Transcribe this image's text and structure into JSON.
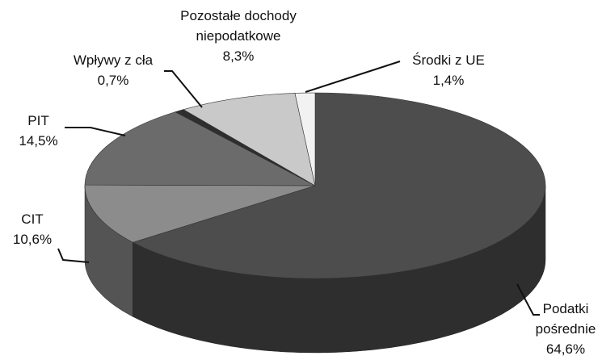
{
  "chart_data": {
    "type": "pie3d",
    "categories": [
      "Podatki pośrednie",
      "CIT",
      "PIT",
      "Wpływy z cła",
      "Pozostałe dochody niepodatkowe",
      "Środki z UE"
    ],
    "values": [
      64.6,
      10.6,
      14.5,
      0.7,
      8.3,
      1.4
    ],
    "value_labels": [
      "64,6%",
      "10,6%",
      "14,5%",
      "0,7%",
      "8,3%",
      "1,4%"
    ],
    "colors": [
      "#4d4d4d",
      "#8c8c8c",
      "#6b6b6b",
      "#2e2e2e",
      "#c9c9c9",
      "#f2f2f2"
    ]
  }
}
